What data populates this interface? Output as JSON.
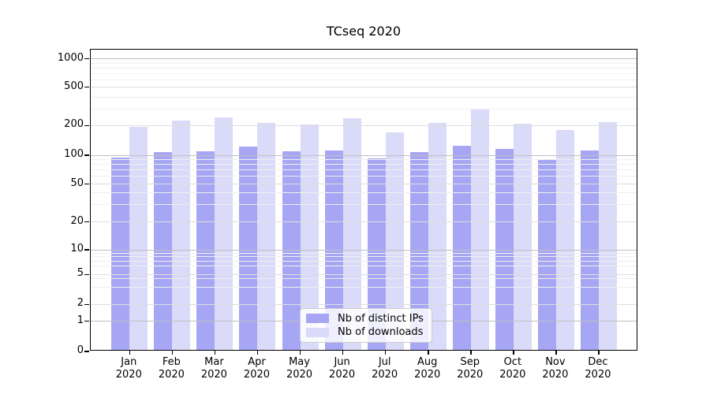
{
  "chart_data": {
    "type": "bar",
    "title": "TCseq 2020",
    "categories": [
      "Jan 2020",
      "Feb 2020",
      "Mar 2020",
      "Apr 2020",
      "May 2020",
      "Jun 2020",
      "Jul 2020",
      "Aug 2020",
      "Sep 2020",
      "Oct 2020",
      "Nov 2020",
      "Dec 2020"
    ],
    "series": [
      {
        "name": "Nb of distinct IPs",
        "color": "#a6a6f4",
        "values": [
          91,
          103,
          105,
          119,
          106,
          108,
          90,
          104,
          121,
          111,
          88,
          108
        ]
      },
      {
        "name": "Nb of downloads",
        "color": "#dadaf9",
        "values": [
          188,
          220,
          240,
          210,
          200,
          235,
          166,
          208,
          285,
          206,
          176,
          211
        ]
      }
    ],
    "xlabel": "",
    "ylabel": "",
    "yticks": [
      0,
      1,
      2,
      5,
      10,
      20,
      50,
      100,
      200,
      500,
      1000
    ],
    "yscale": "log-above-1-linear-below",
    "ylim": [
      0,
      1400
    ],
    "grid": "horizontal, major decade lines darker, minor log lines faint, drawn over bars",
    "legend_position": "lower center inside plot"
  }
}
